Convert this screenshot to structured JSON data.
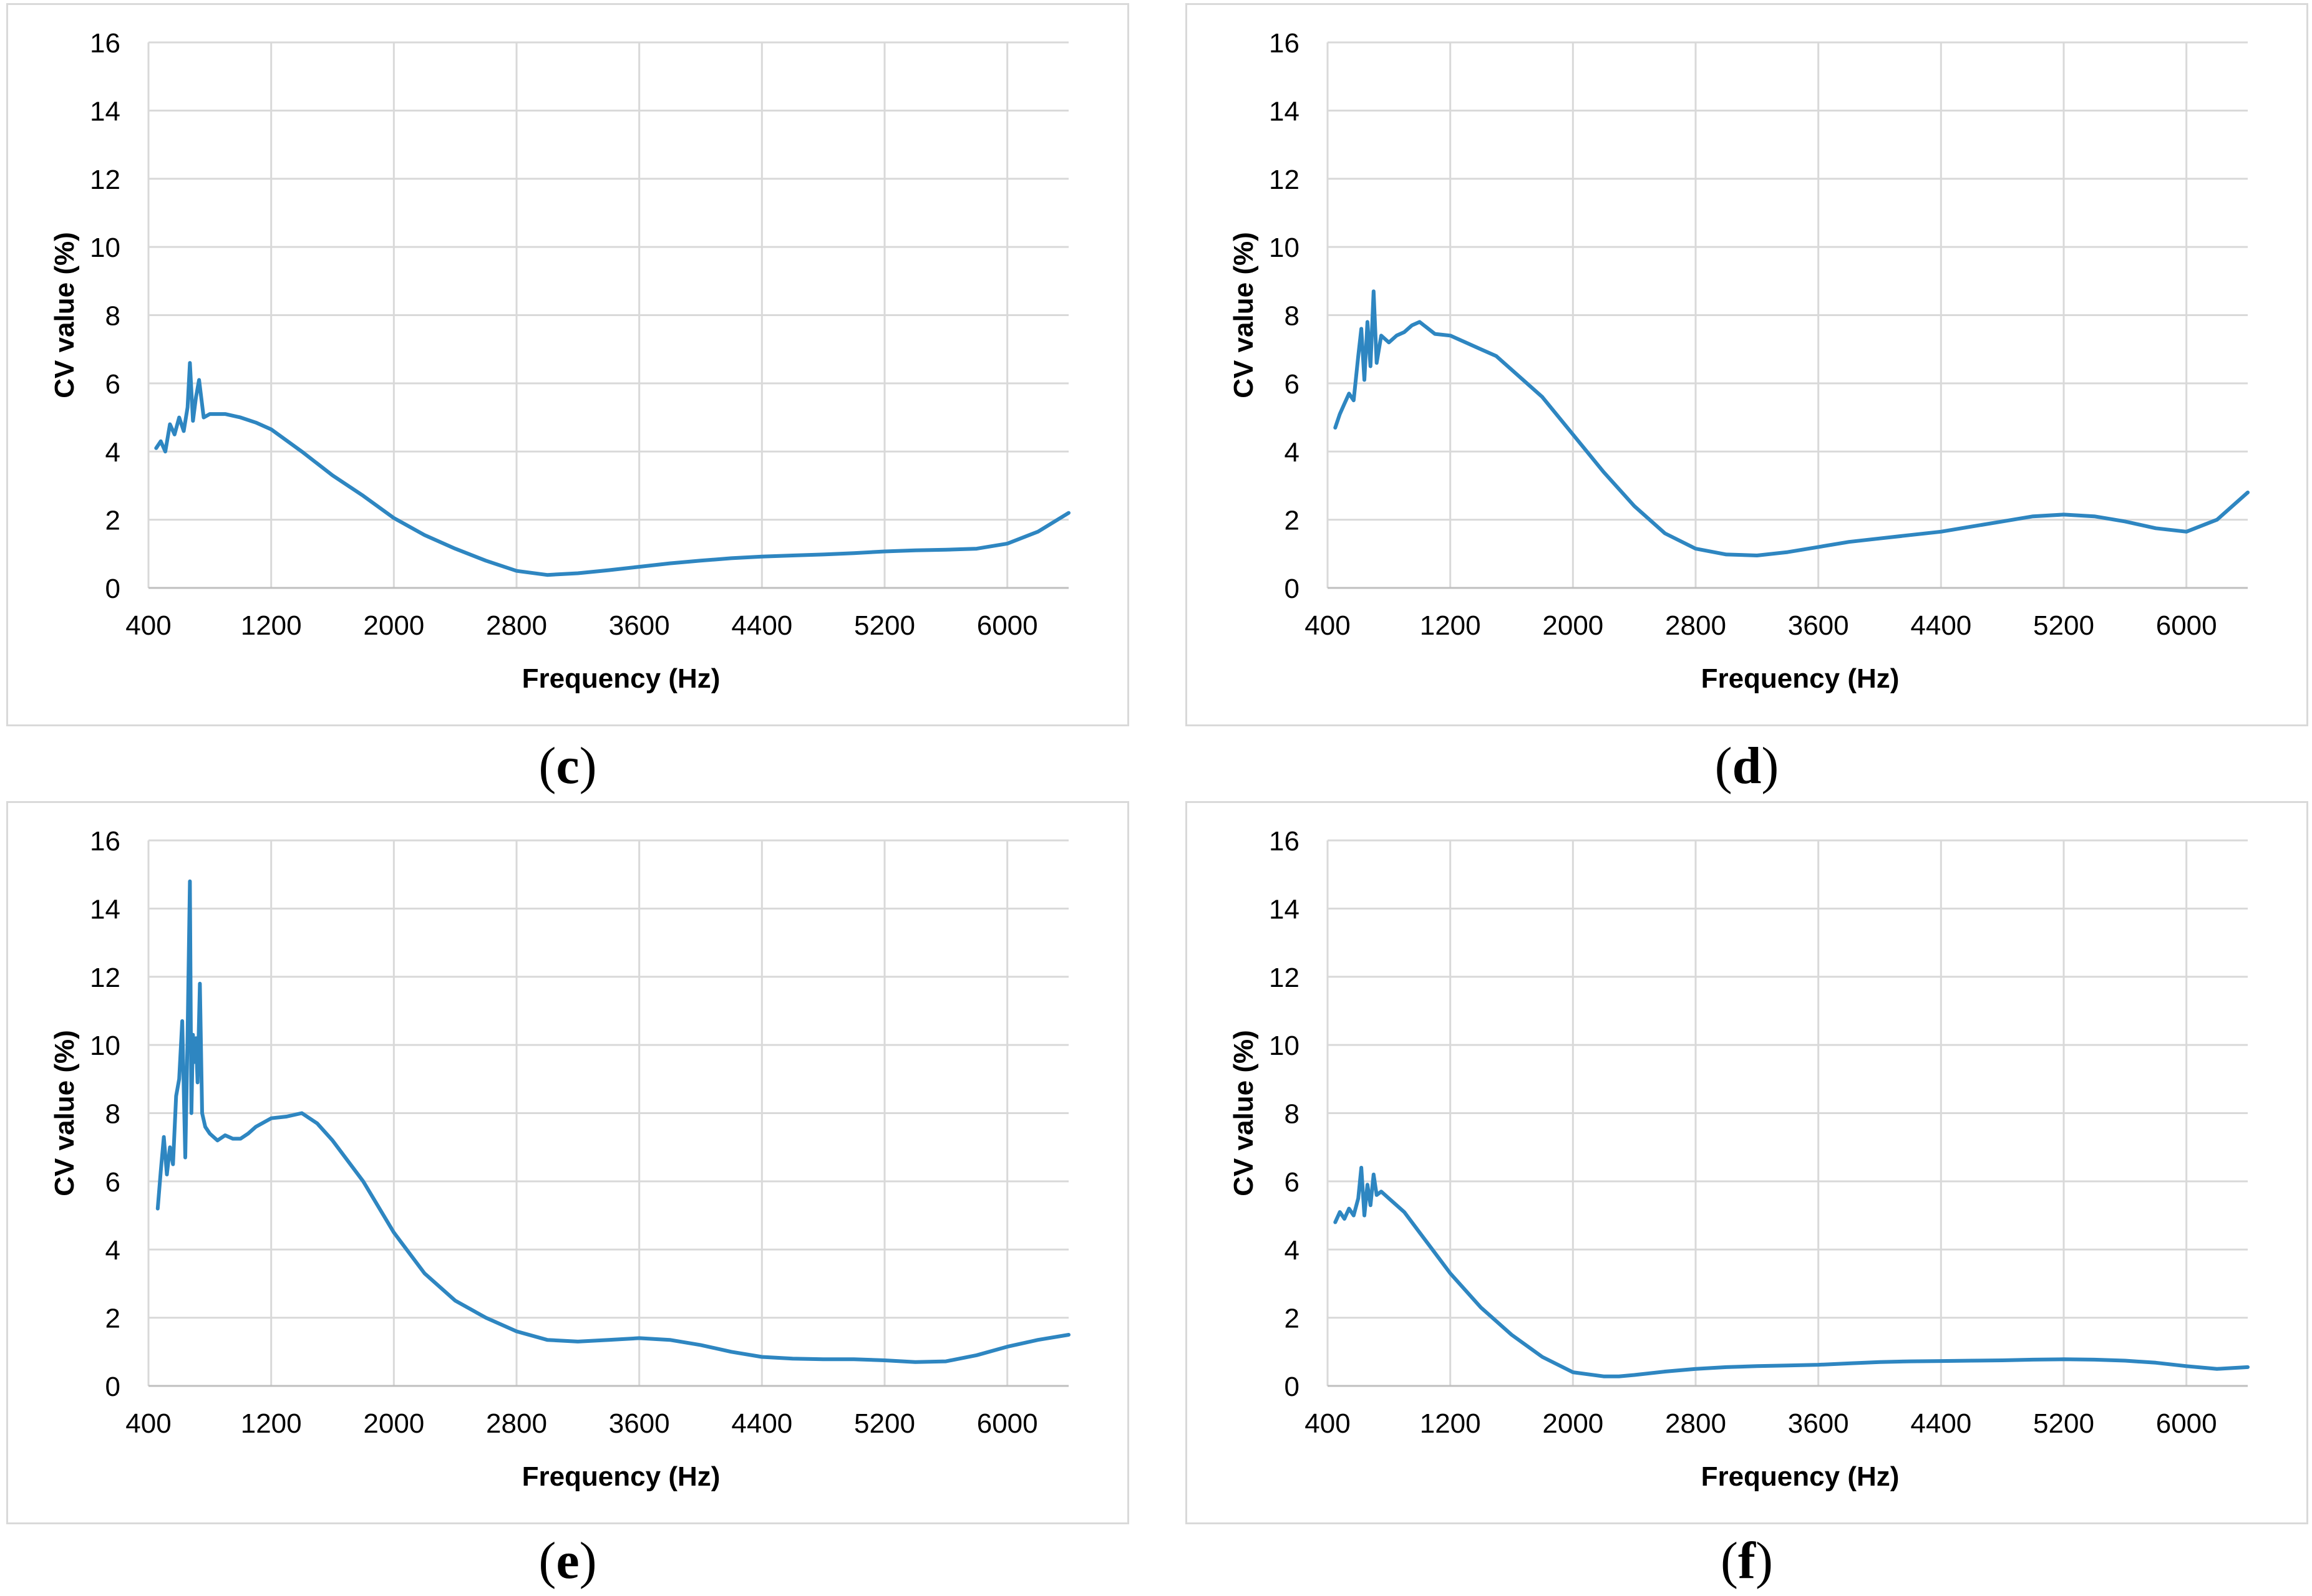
{
  "chart_data": [
    {
      "type": "line",
      "panel_label": "c",
      "title": "",
      "xlabel": "Frequency (Hz)",
      "ylabel": "CV value (%)",
      "xlim": [
        400,
        6400
      ],
      "ylim": [
        0,
        16
      ],
      "xticks": [
        400,
        1200,
        2000,
        2800,
        3600,
        4400,
        5200,
        6000
      ],
      "yticks": [
        0,
        2,
        4,
        6,
        8,
        10,
        12,
        14,
        16
      ],
      "grid": true,
      "legend": "none",
      "series": [
        {
          "name": "CV",
          "color": "#2e86c1",
          "x": [
            450,
            480,
            510,
            540,
            570,
            600,
            630,
            655,
            670,
            690,
            710,
            730,
            760,
            800,
            900,
            1000,
            1100,
            1200,
            1400,
            1600,
            1800,
            2000,
            2200,
            2400,
            2600,
            2800,
            3000,
            3200,
            3400,
            3600,
            3800,
            4000,
            4200,
            4400,
            4600,
            4800,
            5000,
            5200,
            5400,
            5600,
            5800,
            6000,
            6200,
            6400
          ],
          "y": [
            4.1,
            4.3,
            4.0,
            4.8,
            4.5,
            5.0,
            4.6,
            5.3,
            6.6,
            4.9,
            5.6,
            6.1,
            5.0,
            5.1,
            5.1,
            5.0,
            4.85,
            4.65,
            4.0,
            3.3,
            2.7,
            2.05,
            1.55,
            1.15,
            0.8,
            0.5,
            0.38,
            0.43,
            0.52,
            0.62,
            0.72,
            0.8,
            0.87,
            0.92,
            0.95,
            0.98,
            1.02,
            1.07,
            1.1,
            1.12,
            1.15,
            1.3,
            1.65,
            2.2
          ]
        }
      ]
    },
    {
      "type": "line",
      "panel_label": "d",
      "title": "",
      "xlabel": "Frequency (Hz)",
      "ylabel": "CV value (%)",
      "xlim": [
        400,
        6400
      ],
      "ylim": [
        0,
        16
      ],
      "xticks": [
        400,
        1200,
        2000,
        2800,
        3600,
        4400,
        5200,
        6000
      ],
      "yticks": [
        0,
        2,
        4,
        6,
        8,
        10,
        12,
        14,
        16
      ],
      "grid": true,
      "legend": "none",
      "series": [
        {
          "name": "CV",
          "color": "#2e86c1",
          "x": [
            450,
            480,
            510,
            540,
            570,
            600,
            620,
            640,
            660,
            680,
            700,
            720,
            750,
            800,
            850,
            900,
            950,
            1000,
            1100,
            1200,
            1300,
            1400,
            1500,
            1600,
            1800,
            2000,
            2200,
            2400,
            2600,
            2800,
            3000,
            3200,
            3400,
            3600,
            3800,
            4000,
            4200,
            4400,
            4600,
            4800,
            5000,
            5200,
            5400,
            5600,
            5800,
            6000,
            6200,
            6400
          ],
          "y": [
            4.7,
            5.1,
            5.4,
            5.7,
            5.5,
            6.8,
            7.6,
            6.1,
            7.8,
            6.5,
            8.7,
            6.6,
            7.4,
            7.2,
            7.4,
            7.5,
            7.7,
            7.8,
            7.45,
            7.4,
            7.2,
            7.0,
            6.8,
            6.4,
            5.6,
            4.5,
            3.4,
            2.4,
            1.6,
            1.15,
            0.98,
            0.95,
            1.05,
            1.2,
            1.35,
            1.45,
            1.55,
            1.65,
            1.8,
            1.95,
            2.1,
            2.15,
            2.1,
            1.95,
            1.75,
            1.65,
            2.0,
            2.8
          ]
        }
      ]
    },
    {
      "type": "line",
      "panel_label": "e",
      "title": "",
      "xlabel": "Frequency (Hz)",
      "ylabel": "CV value (%)",
      "xlim": [
        400,
        6400
      ],
      "ylim": [
        0,
        16
      ],
      "xticks": [
        400,
        1200,
        2000,
        2800,
        3600,
        4400,
        5200,
        6000
      ],
      "yticks": [
        0,
        2,
        4,
        6,
        8,
        10,
        12,
        14,
        16
      ],
      "grid": true,
      "legend": "none",
      "series": [
        {
          "name": "CV",
          "color": "#2e86c1",
          "x": [
            460,
            480,
            500,
            520,
            540,
            560,
            580,
            600,
            620,
            640,
            655,
            670,
            680,
            690,
            700,
            710,
            720,
            735,
            750,
            770,
            800,
            850,
            900,
            950,
            1000,
            1050,
            1100,
            1200,
            1300,
            1400,
            1500,
            1600,
            1800,
            2000,
            2200,
            2400,
            2600,
            2800,
            3000,
            3200,
            3400,
            3600,
            3800,
            4000,
            4200,
            4400,
            4600,
            4800,
            5000,
            5200,
            5400,
            5600,
            5800,
            6000,
            6200,
            6400
          ],
          "y": [
            5.2,
            6.3,
            7.3,
            6.2,
            7.0,
            6.5,
            8.5,
            9.0,
            10.7,
            6.7,
            10.3,
            14.8,
            8.0,
            10.3,
            9.5,
            10.2,
            8.9,
            11.8,
            8.0,
            7.6,
            7.4,
            7.2,
            7.35,
            7.25,
            7.25,
            7.4,
            7.6,
            7.85,
            7.9,
            8.0,
            7.7,
            7.2,
            6.0,
            4.5,
            3.3,
            2.5,
            2.0,
            1.6,
            1.35,
            1.3,
            1.35,
            1.4,
            1.35,
            1.2,
            1.0,
            0.85,
            0.8,
            0.78,
            0.78,
            0.75,
            0.7,
            0.72,
            0.9,
            1.15,
            1.35,
            1.5
          ]
        }
      ]
    },
    {
      "type": "line",
      "panel_label": "f",
      "title": "",
      "xlabel": "Frequency (Hz)",
      "ylabel": "CV value (%)",
      "xlim": [
        400,
        6400
      ],
      "ylim": [
        0,
        16
      ],
      "xticks": [
        400,
        1200,
        2000,
        2800,
        3600,
        4400,
        5200,
        6000
      ],
      "yticks": [
        0,
        2,
        4,
        6,
        8,
        10,
        12,
        14,
        16
      ],
      "grid": true,
      "legend": "none",
      "series": [
        {
          "name": "CV",
          "color": "#2e86c1",
          "x": [
            450,
            480,
            510,
            540,
            570,
            600,
            620,
            640,
            660,
            680,
            700,
            720,
            750,
            800,
            900,
            1000,
            1100,
            1200,
            1400,
            1600,
            1800,
            2000,
            2200,
            2300,
            2400,
            2600,
            2800,
            3000,
            3200,
            3400,
            3600,
            3800,
            4000,
            4200,
            4400,
            4600,
            4800,
            5000,
            5200,
            5400,
            5600,
            5800,
            6000,
            6200,
            6400
          ],
          "y": [
            4.8,
            5.1,
            4.9,
            5.2,
            5.0,
            5.5,
            6.4,
            5.0,
            5.9,
            5.3,
            6.2,
            5.6,
            5.7,
            5.5,
            5.1,
            4.5,
            3.9,
            3.3,
            2.3,
            1.5,
            0.85,
            0.4,
            0.28,
            0.28,
            0.32,
            0.42,
            0.5,
            0.55,
            0.58,
            0.6,
            0.62,
            0.66,
            0.7,
            0.72,
            0.73,
            0.74,
            0.75,
            0.77,
            0.78,
            0.77,
            0.74,
            0.68,
            0.58,
            0.5,
            0.55
          ]
        }
      ]
    }
  ]
}
